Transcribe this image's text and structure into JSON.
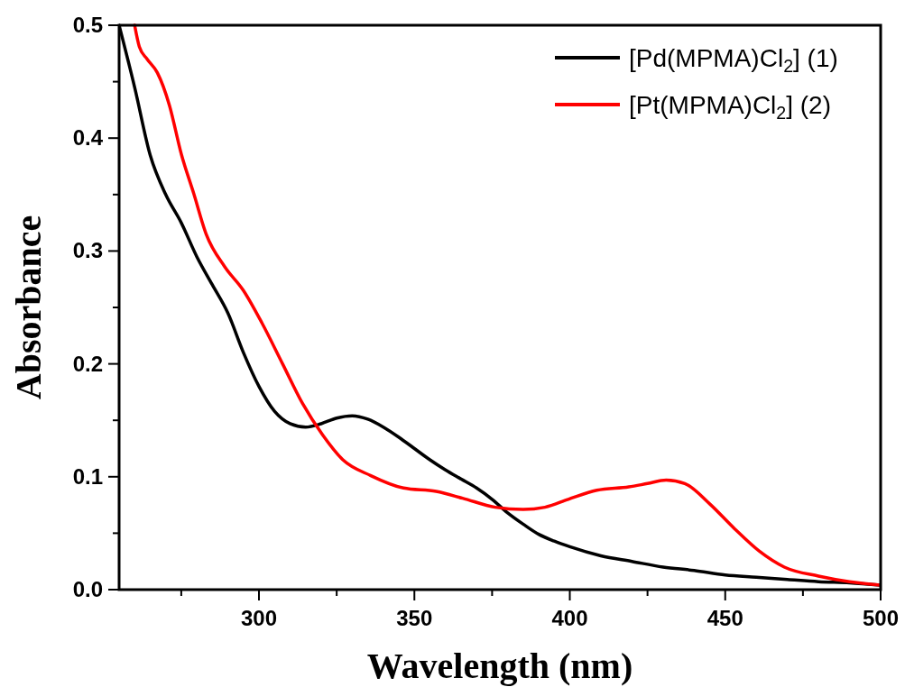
{
  "chart_data": {
    "type": "line",
    "xlabel": "Wavelength (nm)",
    "ylabel": "Absorbance",
    "xlim": [
      255,
      500
    ],
    "ylim": [
      0,
      0.5
    ],
    "xticks": [
      {
        "value": 275,
        "label": null
      },
      300,
      {
        "value": 325,
        "label": null
      },
      350,
      {
        "value": 375,
        "label": null
      },
      400,
      {
        "value": 425,
        "label": null
      },
      450,
      {
        "value": 475,
        "label": null
      },
      500
    ],
    "yticks": [
      {
        "value": 0,
        "label": "0.0"
      },
      {
        "value": 0.05,
        "label": null
      },
      0.1,
      {
        "value": 0.15,
        "label": null
      },
      0.2,
      {
        "value": 0.25,
        "label": null
      },
      0.3,
      {
        "value": 0.35,
        "label": null
      },
      0.4,
      {
        "value": 0.45,
        "label": null
      },
      0.5
    ],
    "legend": "top right",
    "grid": false,
    "marker": "none",
    "line_style": "solid",
    "series": [
      {
        "name": "[Pd(MPMA)Cl$_{2}$] (1)",
        "color": "#000000",
        "x": [
          255,
          260,
          265,
          270,
          275,
          280,
          285,
          290,
          295,
          300,
          305,
          310,
          315,
          320,
          325,
          330,
          335,
          340,
          345,
          350,
          355,
          360,
          365,
          370,
          375,
          380,
          385,
          390,
          395,
          400,
          410,
          420,
          430,
          440,
          450,
          460,
          470,
          480,
          490,
          500
        ],
        "values": [
          0.5,
          0.445,
          0.385,
          0.35,
          0.325,
          0.295,
          0.27,
          0.245,
          0.21,
          0.18,
          0.158,
          0.147,
          0.144,
          0.147,
          0.152,
          0.154,
          0.151,
          0.144,
          0.135,
          0.125,
          0.115,
          0.106,
          0.098,
          0.09,
          0.08,
          0.068,
          0.058,
          0.049,
          0.043,
          0.038,
          0.03,
          0.025,
          0.02,
          0.017,
          0.013,
          0.011,
          0.009,
          0.007,
          0.006,
          0.004
        ]
      },
      {
        "name": "[Pt(MPMA)Cl$_{2}$]  (2)",
        "color": "#ff0000",
        "x": [
          260,
          261.5,
          264,
          267.3,
          271.2,
          275,
          279,
          283,
          289,
          295,
          301,
          307.6,
          314,
          320.5,
          327,
          336,
          346.5,
          357,
          365.5,
          376,
          385,
          392,
          399.5,
          408.7,
          419,
          425,
          431,
          437,
          445,
          453,
          461,
          469,
          480,
          490,
          500
        ],
        "values": [
          0.5,
          0.481,
          0.47,
          0.458,
          0.429,
          0.386,
          0.351,
          0.315,
          0.286,
          0.265,
          0.236,
          0.2,
          0.165,
          0.137,
          0.115,
          0.101,
          0.09,
          0.087,
          0.081,
          0.073,
          0.071,
          0.073,
          0.08,
          0.088,
          0.091,
          0.094,
          0.097,
          0.094,
          0.076,
          0.054,
          0.034,
          0.02,
          0.012,
          0.007,
          0.004
        ]
      }
    ]
  }
}
